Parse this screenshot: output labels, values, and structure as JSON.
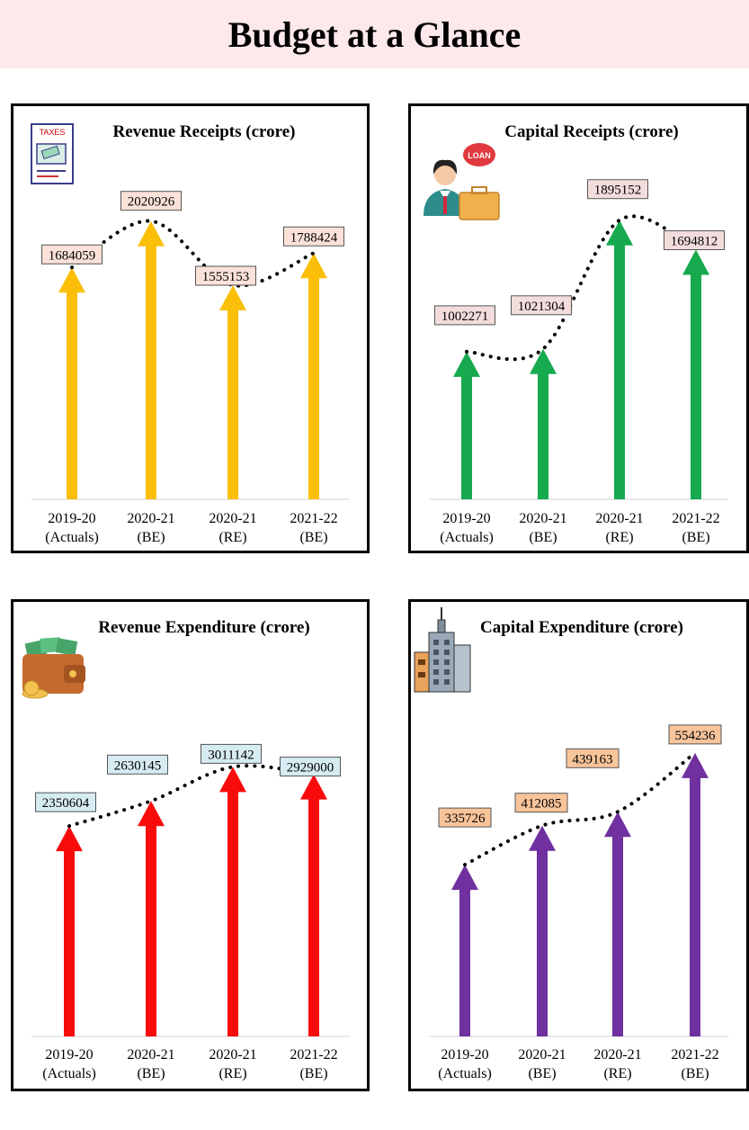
{
  "page": {
    "title": "Budget at a Glance"
  },
  "chart_data": [
    {
      "type": "bar",
      "title": "Revenue Receipts (crore)",
      "categories": [
        "2019-20\n(Actuals)",
        "2020-21\n(BE)",
        "2020-21\n(RE)",
        "2021-22\n(BE)"
      ],
      "values": [
        1684059,
        2020926,
        1555153,
        1788424
      ],
      "ylim": [
        0,
        2300000
      ],
      "color": "#fbbf0a",
      "label_bg": "#fbe2d8",
      "icon": "tax-document-icon",
      "grid": false
    },
    {
      "type": "bar",
      "title": "Capital Receipts (crore)",
      "categories": [
        "2019-20\n(Actuals)",
        "2020-21\n(BE)",
        "2020-21\n(RE)",
        "2021-22\n(BE)"
      ],
      "values": [
        1002271,
        1021304,
        1895152,
        1694812
      ],
      "ylim": [
        0,
        2150000
      ],
      "color": "#16a94e",
      "label_bg": "#f3dcdc",
      "icon": "loan-officer-icon",
      "grid": false
    },
    {
      "type": "bar",
      "title": "Revenue Expenditure (crore)",
      "categories": [
        "2019-20\n(Actuals)",
        "2020-21\n(BE)",
        "2020-21\n(RE)",
        "2021-22\n(BE)"
      ],
      "values": [
        2350604,
        2630145,
        3011142,
        2929000
      ],
      "ylim": [
        0,
        4000000
      ],
      "color": "#f80b0b",
      "label_bg": "#d6ebf2",
      "icon": "wallet-money-icon",
      "grid": false
    },
    {
      "type": "bar",
      "title": "Capital Expenditure (crore)",
      "categories": [
        "2019-20\n(Actuals)",
        "2020-21\n(BE)",
        "2020-21\n(RE)",
        "2021-22\n(BE)"
      ],
      "values": [
        335726,
        412085,
        439163,
        554236
      ],
      "ylim": [
        0,
        700000
      ],
      "color": "#7030a0",
      "label_bg": "#f8c49a",
      "icon": "office-building-icon",
      "grid": false
    }
  ]
}
